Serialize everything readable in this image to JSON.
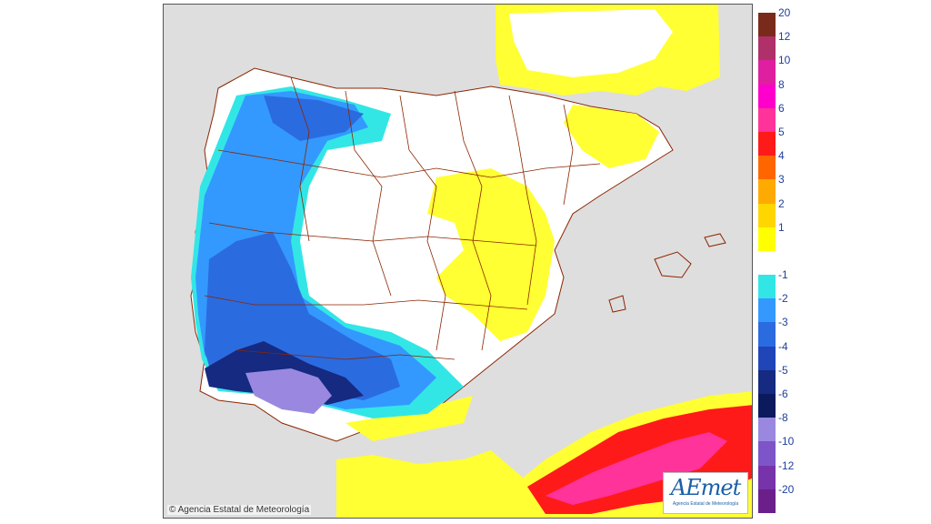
{
  "map": {
    "copyright": "© Agencia Estatal de Meteorología",
    "logo": {
      "wordmark": "AEmet",
      "subtitle": "Agencia Estatal de Meteorología"
    }
  },
  "colors": {
    "sea": "#dedede",
    "zero": "#ffffff",
    "positive_1": "#ffff00",
    "positive_2": "#ffd600",
    "positive_3": "#ff9900",
    "positive_4": "#ff6600",
    "positive_5": "#ff1a1a",
    "positive_6": "#ff3399",
    "positive_8": "#ff00cc",
    "positive_10": "#cc0077",
    "positive_12": "#7a2a1a",
    "negative_1": "#33e6e6",
    "negative_2": "#3399ff",
    "negative_3": "#2b6be0",
    "negative_4": "#1f45b8",
    "negative_5": "#152a80",
    "negative_6": "#0a1a5c",
    "negative_8": "#9a88e0",
    "negative_10": "#7d55c8",
    "negative_12": "#7733aa",
    "boundary": "#8b2500"
  },
  "legend": {
    "positive": [
      {
        "label": "20",
        "color": "#7a2a1a"
      },
      {
        "label": "12",
        "color": "#b0306a"
      },
      {
        "label": "10",
        "color": "#dd1fa0"
      },
      {
        "label": "8",
        "color": "#ff00cc"
      },
      {
        "label": "6",
        "color": "#ff3399"
      },
      {
        "label": "5",
        "color": "#ff1a1a"
      },
      {
        "label": "4",
        "color": "#ff6600"
      },
      {
        "label": "3",
        "color": "#ffaa00"
      },
      {
        "label": "2",
        "color": "#ffd600"
      },
      {
        "label": "1",
        "color": "#ffff00"
      }
    ],
    "negative": [
      {
        "label": "-1",
        "color": "#33e6e6"
      },
      {
        "label": "-2",
        "color": "#3399ff"
      },
      {
        "label": "-3",
        "color": "#2b6be0"
      },
      {
        "label": "-4",
        "color": "#1f45b8"
      },
      {
        "label": "-5",
        "color": "#152a80"
      },
      {
        "label": "-6",
        "color": "#0a1a5c"
      },
      {
        "label": "-8",
        "color": "#9a88e0"
      },
      {
        "label": "-10",
        "color": "#7d55c8"
      },
      {
        "label": "-12",
        "color": "#7733aa"
      },
      {
        "label": "-20",
        "color": "#6a1f8a"
      }
    ]
  }
}
